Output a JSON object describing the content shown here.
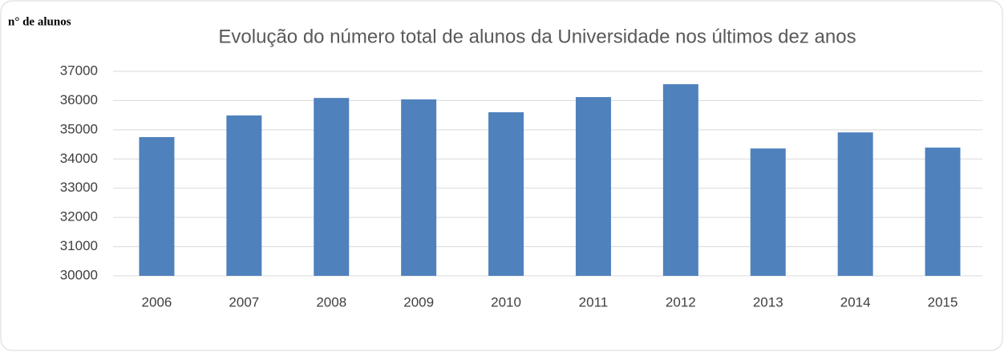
{
  "chart_data": {
    "type": "bar",
    "title": "Evolução do número total de alunos da Universidade nos últimos dez  anos",
    "y_label": "n° de alunos",
    "categories": [
      "2006",
      "2007",
      "2008",
      "2009",
      "2010",
      "2011",
      "2012",
      "2013",
      "2014",
      "2015"
    ],
    "values": [
      34750,
      35490,
      36090,
      36040,
      35600,
      36120,
      36560,
      34360,
      34910,
      34390
    ],
    "color": "#4f81bd",
    "ylim": [
      30000,
      37000
    ],
    "yticks": [
      30000,
      31000,
      32000,
      33000,
      34000,
      35000,
      36000,
      37000
    ],
    "grid": true
  }
}
